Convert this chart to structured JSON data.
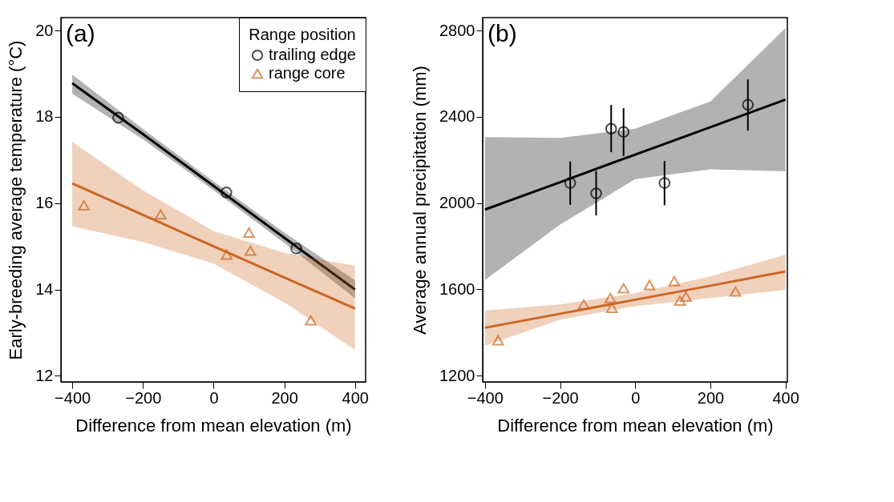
{
  "chart_data": [
    {
      "type": "scatter",
      "xlabel": "Difference from mean elevation (m)",
      "ylabel": "Early-breeding average temperature (°C)",
      "annotations": [
        "(a)"
      ],
      "legend": "top right",
      "legend_title": "Range position",
      "grid": false,
      "xlim": [
        -432,
        430
      ],
      "xticks": [
        -400,
        -200,
        0,
        200,
        400
      ],
      "ylim": [
        11.86,
        20.3
      ],
      "yticks": [
        12,
        14,
        16,
        18,
        20
      ],
      "series": [
        {
          "type": "line",
          "color": "#000000",
          "x": [
            -400,
            -200,
            0,
            200,
            400
          ],
          "values": [
            18.78,
            17.6,
            16.4,
            15.2,
            14.0
          ],
          "lower": [
            18.54,
            17.48,
            16.3,
            15.08,
            13.8
          ],
          "upper": [
            18.98,
            17.72,
            16.5,
            15.32,
            14.21
          ]
        },
        {
          "type": "line",
          "color": "#cc6622",
          "x": [
            -400,
            -200,
            0,
            200,
            400
          ],
          "values": [
            16.46,
            15.73,
            15.0,
            14.28,
            13.56
          ],
          "lower": [
            15.47,
            15.1,
            14.6,
            13.7,
            12.6
          ],
          "upper": [
            17.42,
            16.3,
            15.35,
            14.85,
            14.55
          ]
        },
        {
          "name": "trailing edge",
          "color": "#000000",
          "marker": "circle",
          "x": [
            -270,
            36,
            234
          ],
          "values": [
            17.98,
            16.25,
            14.95
          ]
        },
        {
          "name": "range core",
          "color": "#cc6622",
          "marker": "triangle",
          "x": [
            -367,
            -150,
            37,
            100,
            104,
            275
          ],
          "values": [
            15.95,
            15.74,
            14.81,
            15.32,
            14.9,
            13.29
          ]
        }
      ]
    },
    {
      "type": "scatter",
      "xlabel": "Difference from mean elevation (m)",
      "ylabel": "Average annual precipitation (mm)",
      "annotations": [
        "(b)"
      ],
      "grid": false,
      "xlim": [
        -406,
        405
      ],
      "xticks": [
        -400,
        -200,
        0,
        200,
        400
      ],
      "ylim": [
        1171,
        2860
      ],
      "yticks": [
        1200,
        1600,
        2000,
        2400,
        2800
      ],
      "series": [
        {
          "type": "line",
          "color": "#000000",
          "x": [
            -400,
            -200,
            0,
            200,
            400
          ],
          "values": [
            1970,
            2097,
            2225,
            2352,
            2480
          ],
          "lower": [
            1643,
            1900,
            2111,
            2157,
            2147
          ],
          "upper": [
            2306,
            2302,
            2345,
            2471,
            2812
          ]
        },
        {
          "type": "line",
          "color": "#cc6622",
          "x": [
            -400,
            -200,
            0,
            200,
            400
          ],
          "values": [
            1422,
            1487,
            1552,
            1617,
            1683
          ],
          "lower": [
            1339,
            1460,
            1522,
            1560,
            1598
          ],
          "upper": [
            1502,
            1530,
            1582,
            1660,
            1761
          ]
        },
        {
          "color": "#000000",
          "marker": "circle",
          "x": [
            -173,
            -104,
            -64,
            -31,
            78,
            300
          ],
          "values": [
            2093,
            2045,
            2345,
            2330,
            2093,
            2456
          ],
          "errors": [
            [
              1992,
              2193
            ],
            [
              1943,
              2149
            ],
            [
              2236,
              2455
            ],
            [
              2219,
              2440
            ],
            [
              1990,
              2195
            ],
            [
              2336,
              2573
            ]
          ]
        },
        {
          "color": "#cc6622",
          "marker": "triangle",
          "x": [
            -365,
            -137,
            -66,
            -62,
            -31,
            38,
            104,
            119,
            135,
            267
          ],
          "values": [
            1364,
            1530,
            1560,
            1514,
            1605,
            1620,
            1638,
            1548,
            1566,
            1590
          ]
        }
      ]
    }
  ]
}
